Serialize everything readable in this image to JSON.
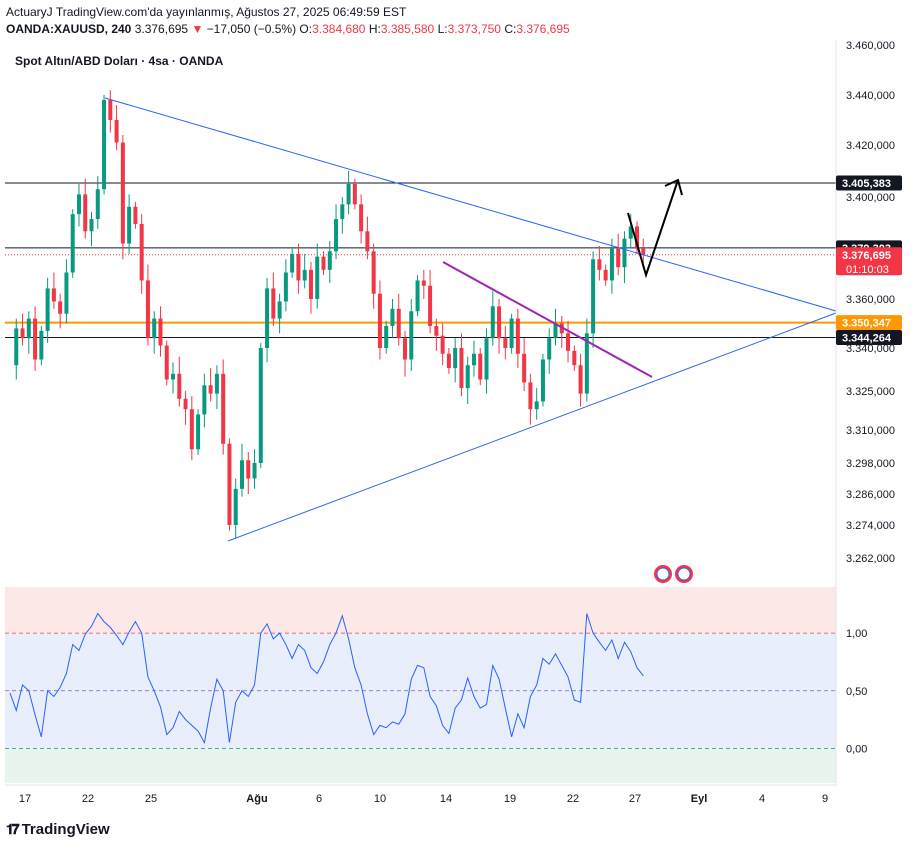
{
  "header": {
    "publisher": "ActuaryJ",
    "published_text": "TradingView.com'da yayınlanmış, Ağustos 27, 2025 06:49:59 EST",
    "symbol": "OANDA:XAUUSD, 240",
    "last": "3.376,695",
    "change": "−17,050 (−0.5%)",
    "o_label": "O:",
    "o_value": "3.384,680",
    "h_label": "H:",
    "h_value": "3.385,580",
    "l_label": "L:",
    "l_value": "3.373,750",
    "c_label": "C:",
    "c_value": "3.376,695"
  },
  "chart_title": "Spot Altın/ABD Doları · 4sa · OANDA",
  "branding": "TradingView",
  "colors": {
    "up": "#089981",
    "down": "#f23645",
    "trendline": "#2962ff",
    "purple_line": "#9c27b0",
    "orange_level": "#ff9800",
    "rsi_line": "#2962ff",
    "rsi_band": "#e8eefc",
    "rsi_overbought": "#fde8e8",
    "rsi_oversold": "#e8f5ef",
    "last_price_label": "#f23645"
  },
  "chart_data": [
    {
      "type": "candlestick",
      "x_ticks": [
        "17",
        "22",
        "25",
        "Ağu",
        "6",
        "10",
        "14",
        "19",
        "22",
        "27",
        "Eyl",
        "4",
        "9"
      ],
      "y_ticks": [
        "3.262,000",
        "3.274,000",
        "3.286,000",
        "3.298,000",
        "3.310,000",
        "3.325,000",
        "3.340,000",
        "3.360,000",
        "3.380,000",
        "3.400,000",
        "3.420,000",
        "3.440,000",
        "3.460,000"
      ],
      "y_tick_values": [
        3262,
        3274,
        3286,
        3298,
        3310,
        3325,
        3340,
        3360,
        3380,
        3400,
        3420,
        3440,
        3460
      ],
      "close_path": [
        3334,
        3348,
        3344,
        3352,
        3336,
        3347,
        3364,
        3359,
        3354,
        3370,
        3393,
        3401,
        3386,
        3391,
        3403,
        3438,
        3430,
        3421,
        3381,
        3396,
        3389,
        3367,
        3344,
        3352,
        3341,
        3329,
        3331,
        3322,
        3318,
        3303,
        3316,
        3327,
        3324,
        3331,
        3305,
        3274,
        3288,
        3299,
        3292,
        3298,
        3340,
        3364,
        3352,
        3359,
        3370,
        3377,
        3367,
        3371,
        3360,
        3376,
        3371,
        3378,
        3391,
        3397,
        3405,
        3397,
        3386,
        3378,
        3362,
        3340,
        3349,
        3356,
        3344,
        3336,
        3355,
        3367,
        3365,
        3349,
        3345,
        3338,
        3333,
        3340,
        3326,
        3334,
        3338,
        3329,
        3344,
        3357,
        3344,
        3340,
        3352,
        3338,
        3328,
        3318,
        3321,
        3336,
        3344,
        3350,
        3346,
        3339,
        3334,
        3324,
        3346,
        3375,
        3371,
        3367,
        3379,
        3372,
        3383,
        3388,
        3379,
        3376.695
      ],
      "horizontal_levels": [
        {
          "price": 3405.383,
          "label": "3.405,383",
          "style": "black"
        },
        {
          "price": 3379.303,
          "label": "3.379,303",
          "style": "black"
        },
        {
          "price": 3376.695,
          "label": "3.376,695",
          "style": "last"
        },
        {
          "price": 3350.347,
          "label": "3.350,347",
          "style": "orange"
        },
        {
          "price": 3344.264,
          "label": "3.344,264",
          "style": "black"
        }
      ],
      "countdown": "01:10:03",
      "annotations": [
        "descending trendline from 3.440 high",
        "ascending trendline from 3.268 low",
        "purple descending line",
        "black projected arrow toward 3.405"
      ]
    },
    {
      "type": "line",
      "name": "",
      "y_ticks": [
        "1,00",
        "0,50",
        "0,00"
      ],
      "y_tick_values": [
        1.0,
        0.5,
        0.0
      ],
      "values": [
        0.48,
        0.33,
        0.55,
        0.5,
        0.29,
        0.1,
        0.5,
        0.45,
        0.53,
        0.65,
        0.9,
        0.85,
        0.99,
        1.06,
        1.17,
        1.1,
        1.05,
        0.98,
        0.9,
        1.01,
        1.1,
        1.0,
        0.62,
        0.5,
        0.36,
        0.12,
        0.18,
        0.32,
        0.25,
        0.2,
        0.15,
        0.05,
        0.35,
        0.6,
        0.5,
        0.05,
        0.4,
        0.5,
        0.45,
        0.55,
        1.0,
        1.08,
        0.95,
        1.0,
        0.9,
        0.78,
        0.9,
        0.85,
        0.7,
        0.65,
        0.75,
        0.9,
        1.0,
        1.15,
        0.95,
        0.7,
        0.55,
        0.3,
        0.12,
        0.2,
        0.18,
        0.23,
        0.21,
        0.3,
        0.6,
        0.72,
        0.7,
        0.45,
        0.37,
        0.2,
        0.13,
        0.35,
        0.42,
        0.61,
        0.45,
        0.35,
        0.38,
        0.72,
        0.6,
        0.35,
        0.1,
        0.3,
        0.18,
        0.45,
        0.55,
        0.78,
        0.73,
        0.82,
        0.72,
        0.62,
        0.42,
        0.4,
        1.17,
        1.0,
        0.92,
        0.85,
        0.94,
        0.78,
        0.92,
        0.84,
        0.7,
        0.63
      ],
      "ylim": [
        -0.3,
        1.4
      ]
    }
  ]
}
